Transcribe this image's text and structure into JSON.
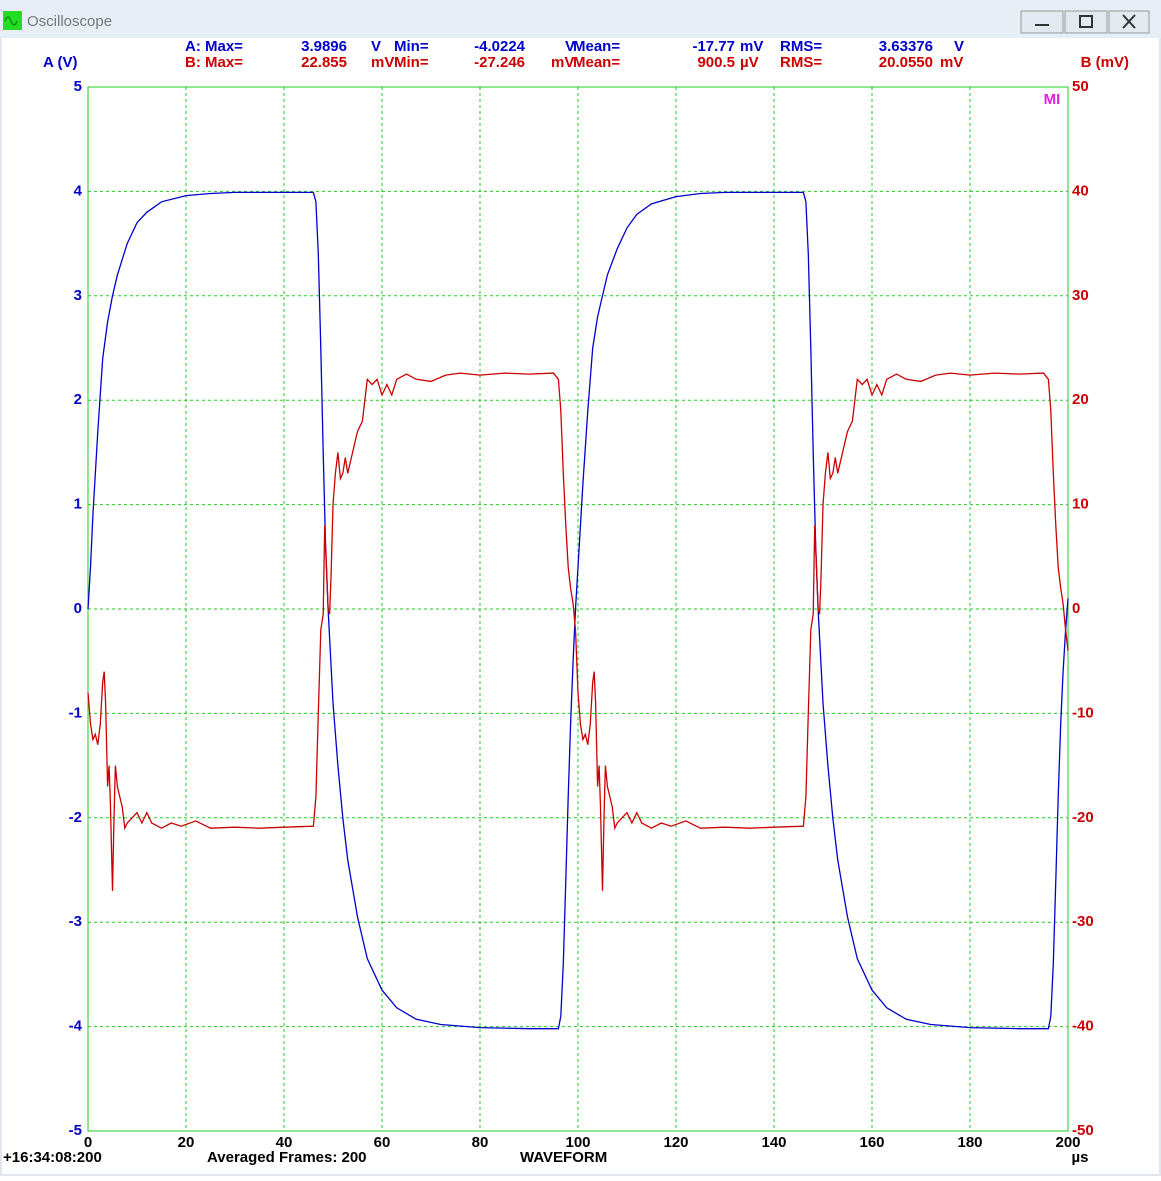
{
  "window_title": "Oscilloscope",
  "stats": {
    "a": [
      "A: Max=",
      "3.9896",
      "V",
      "Min=",
      "-4.0224",
      "V",
      "Mean=",
      "-17.77",
      "mV",
      "RMS=",
      "3.63376",
      "V"
    ],
    "b": [
      "B: Max=",
      "22.855",
      "mV",
      "Min=",
      "-27.246",
      "mV",
      "Mean=",
      "900.5",
      "µV",
      "RMS=",
      "20.0550",
      "mV"
    ]
  },
  "footer": {
    "time": "+16:34:08:200",
    "frames": "Averaged Frames: 200",
    "mode": "WAVEFORM"
  },
  "marker": "MI",
  "chart_data": {
    "type": "line",
    "ylabel": "A (V)",
    "y2label": "B (mV)",
    "xlabel": "µs",
    "xlim": [
      0,
      200
    ],
    "xticks": [
      0,
      20,
      40,
      60,
      80,
      100,
      120,
      140,
      160,
      180,
      200
    ],
    "ylim": [
      -5,
      5
    ],
    "yticks": [
      -5,
      -4,
      -3,
      -2,
      -1,
      0,
      1,
      2,
      3,
      4,
      5
    ],
    "y2lim": [
      -50,
      50
    ],
    "y2ticks": [
      -50,
      -40,
      -30,
      -20,
      -10,
      0,
      10,
      20,
      30,
      40,
      50
    ],
    "grid": true,
    "grid_color": "#22cc22",
    "series": [
      {
        "color": "#0000cc",
        "x": [
          0,
          0.5,
          1,
          2,
          3,
          4,
          5,
          6,
          8,
          10,
          12,
          15,
          20,
          25,
          30,
          40,
          46,
          46.5,
          47,
          47.5,
          48,
          48.5,
          49,
          50,
          51,
          52,
          53,
          55,
          57,
          60,
          63,
          67,
          72,
          80,
          90,
          96,
          96.5,
          97,
          97.5,
          98,
          98.5,
          99,
          99.5,
          100,
          101,
          102,
          103,
          104,
          106,
          108,
          110,
          112,
          115,
          120,
          125,
          130,
          140,
          146,
          146.5,
          147,
          147.5,
          148,
          148.5,
          149,
          150,
          151,
          152,
          153,
          155,
          157,
          160,
          163,
          167,
          172,
          180,
          190,
          196,
          196.5,
          197,
          197.5,
          198,
          198.5,
          199,
          199.5,
          200
        ],
        "values": [
          0,
          0.4,
          0.9,
          1.7,
          2.4,
          2.75,
          3.0,
          3.2,
          3.5,
          3.7,
          3.8,
          3.9,
          3.96,
          3.98,
          3.99,
          3.99,
          3.99,
          3.9,
          3.4,
          2.5,
          1.5,
          0.6,
          0,
          -0.9,
          -1.5,
          -2.0,
          -2.4,
          -2.95,
          -3.35,
          -3.65,
          -3.82,
          -3.93,
          -3.98,
          -4.01,
          -4.02,
          -4.02,
          -3.9,
          -3.4,
          -2.6,
          -1.8,
          -1.1,
          -0.5,
          0,
          0.4,
          1.2,
          1.9,
          2.5,
          2.8,
          3.2,
          3.45,
          3.65,
          3.78,
          3.88,
          3.95,
          3.98,
          3.99,
          3.99,
          3.99,
          3.9,
          3.4,
          2.5,
          1.5,
          0.6,
          0,
          -0.9,
          -1.5,
          -2.0,
          -2.4,
          -2.95,
          -3.35,
          -3.65,
          -3.82,
          -3.93,
          -3.98,
          -4.01,
          -4.02,
          -4.02,
          -3.9,
          -3.4,
          -2.6,
          -1.8,
          -1.1,
          -0.6,
          -0.2,
          0.1
        ]
      },
      {
        "color": "#cc0000",
        "axis": "y2",
        "x": [
          0,
          0.5,
          1,
          1.5,
          2,
          2.5,
          3,
          3.3,
          3.6,
          4,
          4.3,
          4.6,
          5,
          5.3,
          5.6,
          6,
          6.5,
          7,
          7.5,
          8,
          9,
          10,
          11,
          12,
          13,
          15,
          17,
          19,
          22,
          25,
          30,
          35,
          40,
          46,
          46.5,
          47,
          47.5,
          48,
          48.3,
          48.6,
          49,
          49.3,
          49.6,
          50,
          50.5,
          51,
          51.5,
          52,
          52.5,
          53,
          54,
          55,
          56,
          57,
          58,
          59,
          60,
          61,
          62,
          63,
          65,
          67,
          70,
          73,
          76,
          80,
          85,
          90,
          95,
          96,
          96.5,
          97,
          97.5,
          98,
          98.5,
          99,
          99.5,
          100,
          100.5,
          101,
          101.5,
          102,
          102.5,
          103,
          103.3,
          103.6,
          104,
          104.3,
          104.6,
          105,
          105.3,
          105.6,
          106,
          106.5,
          107,
          107.5,
          108,
          109,
          110,
          111,
          112,
          113,
          115,
          117,
          119,
          122,
          125,
          130,
          135,
          140,
          146,
          146.5,
          147,
          147.5,
          148,
          148.3,
          148.6,
          149,
          149.3,
          149.6,
          150,
          150.5,
          151,
          151.5,
          152,
          152.5,
          153,
          154,
          155,
          156,
          157,
          158,
          159,
          160,
          161,
          162,
          163,
          165,
          167,
          170,
          173,
          176,
          180,
          185,
          190,
          195,
          196,
          196.5,
          197,
          197.5,
          198,
          198.5,
          199,
          199.5,
          200
        ],
        "values": [
          -8,
          -11,
          -12.5,
          -12,
          -13,
          -11,
          -7,
          -6,
          -9,
          -17,
          -15,
          -19,
          -27,
          -20,
          -15,
          -17,
          -18,
          -19,
          -21,
          -20.5,
          -20,
          -19.5,
          -20.5,
          -19.5,
          -20.5,
          -21,
          -20.5,
          -20.8,
          -20.3,
          -21,
          -20.9,
          -21,
          -20.9,
          -20.8,
          -18,
          -10,
          -2,
          -0.5,
          8,
          5,
          0,
          -0.5,
          3,
          10,
          13,
          15,
          12.5,
          13,
          14.5,
          13,
          15,
          17,
          18,
          22,
          21.5,
          22,
          20.5,
          21.5,
          20.5,
          22,
          22.5,
          22,
          21.8,
          22.4,
          22.6,
          22.4,
          22.6,
          22.5,
          22.6,
          22,
          19,
          13,
          8,
          4,
          2,
          0.5,
          -2,
          -8,
          -11,
          -12.5,
          -12,
          -13,
          -11,
          -7,
          -6,
          -9,
          -17,
          -15,
          -19,
          -27,
          -20,
          -15,
          -17,
          -18,
          -19,
          -21,
          -20.5,
          -20,
          -19.5,
          -20.5,
          -19.5,
          -20.5,
          -21,
          -20.5,
          -20.8,
          -20.3,
          -21,
          -20.9,
          -21,
          -20.9,
          -20.8,
          -18,
          -10,
          -2,
          -0.5,
          8,
          5,
          0,
          -0.5,
          3,
          10,
          13,
          15,
          12.5,
          13,
          14.5,
          13,
          15,
          17,
          18,
          22,
          21.5,
          22,
          20.5,
          21.5,
          20.5,
          22,
          22.5,
          22,
          21.8,
          22.4,
          22.6,
          22.4,
          22.6,
          22.5,
          22.6,
          22,
          19,
          13,
          8,
          4,
          2,
          0.5,
          -2,
          -4
        ]
      }
    ]
  }
}
